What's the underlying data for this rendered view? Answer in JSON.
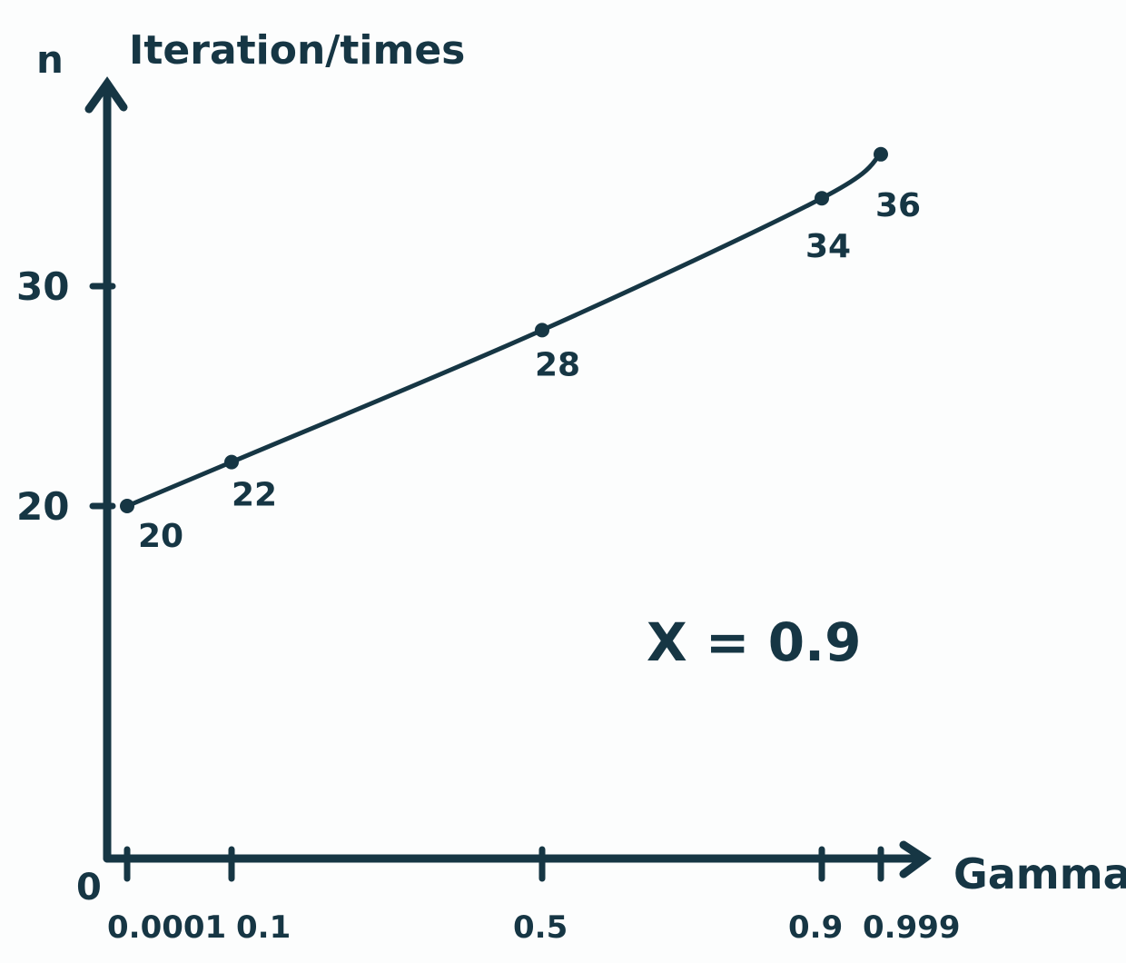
{
  "chart_data": {
    "type": "line",
    "xlabel": "Gamma",
    "ylabel": "Iteration/times",
    "ylabel_symbol": "n",
    "origin_label": "0",
    "x_categories": [
      "0.0001",
      "0.1",
      "0.5",
      "0.9",
      "0.999"
    ],
    "y_ticks": [
      20,
      30
    ],
    "points": [
      {
        "x": "0.0001",
        "y": 20,
        "label": "20"
      },
      {
        "x": "0.1",
        "y": 22,
        "label": "22"
      },
      {
        "x": "0.5",
        "y": 28,
        "label": "28"
      },
      {
        "x": "0.9",
        "y": 34,
        "label": "34"
      },
      {
        "x": "0.999",
        "y": 36,
        "label": "36"
      }
    ],
    "annotation": "X = 0.9",
    "colors": {
      "ink": "#163644",
      "background": "#fcfdfd"
    }
  }
}
